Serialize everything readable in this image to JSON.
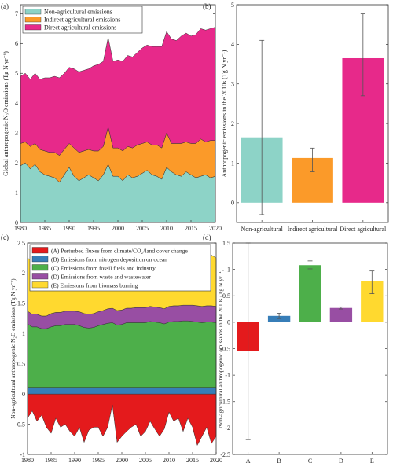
{
  "chart_data": [
    {
      "panel": "(a)",
      "type": "area",
      "stacked": true,
      "ylabel": "Global anthropogenic N₂O emissions (Tg N yr⁻¹)",
      "xlim": [
        1980,
        2020
      ],
      "ylim": [
        0,
        7.3
      ],
      "xticks": [
        1980,
        1985,
        1990,
        1995,
        2000,
        2005,
        2010,
        2015,
        2020
      ],
      "yticks": [
        0,
        1,
        2,
        3,
        4,
        5,
        6,
        7
      ],
      "legend_position": "top-left",
      "x": [
        1980,
        1981,
        1982,
        1983,
        1984,
        1985,
        1986,
        1987,
        1988,
        1989,
        1990,
        1991,
        1992,
        1993,
        1994,
        1995,
        1996,
        1997,
        1998,
        1999,
        2000,
        2001,
        2002,
        2003,
        2004,
        2005,
        2006,
        2007,
        2008,
        2009,
        2010,
        2011,
        2012,
        2013,
        2014,
        2015,
        2016,
        2017,
        2018,
        2019,
        2020
      ],
      "series": [
        {
          "name": "Non-agricultural emissions",
          "color": "#8dd3c7",
          "values": [
            1.9,
            2.0,
            1.8,
            1.95,
            1.7,
            1.6,
            1.55,
            1.5,
            1.35,
            1.6,
            1.85,
            1.55,
            1.4,
            1.5,
            1.6,
            1.5,
            1.4,
            1.6,
            1.95,
            1.55,
            1.55,
            1.4,
            1.6,
            1.5,
            1.55,
            1.65,
            1.75,
            1.6,
            1.55,
            1.45,
            1.85,
            1.7,
            1.6,
            1.55,
            1.7,
            1.6,
            1.5,
            1.55,
            1.6,
            1.5,
            1.55
          ]
        },
        {
          "name": "Indirect agricultural emissions",
          "color": "#fb9a29",
          "values": [
            0.75,
            0.7,
            0.75,
            0.7,
            0.75,
            0.8,
            0.8,
            0.85,
            0.9,
            0.85,
            0.8,
            0.95,
            0.95,
            0.9,
            0.85,
            0.9,
            1.0,
            0.95,
            1.25,
            0.95,
            0.95,
            1.0,
            0.95,
            1.0,
            1.05,
            1.0,
            0.95,
            1.0,
            1.05,
            1.05,
            1.15,
            0.95,
            1.05,
            1.1,
            1.0,
            1.05,
            1.15,
            1.25,
            1.1,
            1.25,
            1.2
          ]
        },
        {
          "name": "Direct agricultural emissions",
          "color": "#e7298a",
          "values": [
            2.25,
            2.3,
            2.25,
            2.35,
            2.35,
            2.45,
            2.5,
            2.55,
            2.6,
            2.55,
            2.55,
            2.65,
            2.7,
            2.7,
            2.7,
            2.85,
            2.9,
            2.85,
            3.0,
            2.9,
            2.95,
            3.0,
            3.05,
            3.05,
            3.1,
            3.2,
            3.25,
            3.3,
            3.3,
            3.4,
            3.4,
            3.5,
            3.45,
            3.6,
            3.65,
            3.6,
            3.65,
            3.7,
            3.75,
            3.75,
            3.8
          ]
        }
      ]
    },
    {
      "panel": "(b)",
      "type": "bar",
      "ylabel": "Anthropogenic emissions in the 2010s (Tg N yr⁻¹)",
      "ylim": [
        -0.5,
        5
      ],
      "yticks": [
        0,
        1,
        2,
        3,
        4,
        5
      ],
      "categories": [
        "Non-agricultural",
        "Indirect agricultural",
        "Direct agricultural"
      ],
      "colors": [
        "#8dd3c7",
        "#fb9a29",
        "#e7298a"
      ],
      "values": [
        1.65,
        1.13,
        3.65
      ],
      "error_low": [
        -0.3,
        0.78,
        2.7
      ],
      "error_high": [
        4.1,
        1.38,
        4.77
      ]
    },
    {
      "panel": "(c)",
      "type": "area",
      "stacked": true,
      "ylabel": "Non-agricultural anthropogenic N₂O emissions (Tg N yr⁻¹)",
      "xlim": [
        1980,
        2020
      ],
      "ylim": [
        -1,
        2.5
      ],
      "xticks": [
        1980,
        1985,
        1990,
        1995,
        2000,
        2005,
        2010,
        2015,
        2020
      ],
      "yticks": [
        -1,
        -0.5,
        0,
        0.5,
        1,
        1.5,
        2,
        2.5
      ],
      "legend_position": "top",
      "x": [
        1980,
        1981,
        1982,
        1983,
        1984,
        1985,
        1986,
        1987,
        1988,
        1989,
        1990,
        1991,
        1992,
        1993,
        1994,
        1995,
        1996,
        1997,
        1998,
        1999,
        2000,
        2001,
        2002,
        2003,
        2004,
        2005,
        2006,
        2007,
        2008,
        2009,
        2010,
        2011,
        2012,
        2013,
        2014,
        2015,
        2016,
        2017,
        2018,
        2019,
        2020
      ],
      "series": [
        {
          "name": "(A) Perturbed fluxes from climate/CO₂/land cover change",
          "color": "#e41a1c",
          "values": [
            -0.4,
            -0.28,
            -0.45,
            -0.35,
            -0.55,
            -0.65,
            -0.4,
            -0.55,
            -0.5,
            -0.62,
            -0.7,
            -0.55,
            -0.8,
            -0.6,
            -0.55,
            -0.55,
            -0.7,
            -0.55,
            -0.18,
            -0.8,
            -0.7,
            -0.62,
            -0.55,
            -0.5,
            -0.7,
            -0.62,
            -0.45,
            -0.58,
            -0.7,
            -0.58,
            -0.3,
            -0.45,
            -0.4,
            -0.62,
            -0.4,
            -0.55,
            -0.85,
            -0.7,
            -0.55,
            -0.82,
            -0.7
          ]
        },
        {
          "name": "(B) Emissions from nitrogen deposition on ocean",
          "color": "#377eb8",
          "values": [
            0.11,
            0.11,
            0.11,
            0.11,
            0.11,
            0.11,
            0.11,
            0.11,
            0.11,
            0.11,
            0.11,
            0.11,
            0.11,
            0.11,
            0.11,
            0.11,
            0.11,
            0.11,
            0.11,
            0.11,
            0.11,
            0.11,
            0.11,
            0.11,
            0.11,
            0.11,
            0.11,
            0.11,
            0.11,
            0.11,
            0.11,
            0.11,
            0.11,
            0.11,
            0.11,
            0.11,
            0.11,
            0.11,
            0.11,
            0.11,
            0.11
          ]
        },
        {
          "name": "(C) Emissions from fossil fuels and industry",
          "color": "#4daf4a",
          "values": [
            1.05,
            1.0,
            1.0,
            0.97,
            0.97,
            1.0,
            1.02,
            1.02,
            1.04,
            1.04,
            1.04,
            1.02,
            0.99,
            0.98,
            0.99,
            1.02,
            1.04,
            1.06,
            1.07,
            1.03,
            1.04,
            1.07,
            1.07,
            1.07,
            1.07,
            1.07,
            1.09,
            1.08,
            1.07,
            1.05,
            1.08,
            1.09,
            1.09,
            1.1,
            1.1,
            1.09,
            1.08,
            1.07,
            1.08,
            1.08,
            1.07
          ]
        },
        {
          "name": "(D) Emissions from waste and wastewater",
          "color": "#984ea3",
          "values": [
            0.21,
            0.21,
            0.21,
            0.21,
            0.21,
            0.22,
            0.22,
            0.22,
            0.22,
            0.22,
            0.22,
            0.23,
            0.23,
            0.23,
            0.23,
            0.23,
            0.23,
            0.24,
            0.24,
            0.24,
            0.24,
            0.24,
            0.24,
            0.25,
            0.25,
            0.25,
            0.25,
            0.25,
            0.25,
            0.25,
            0.26,
            0.26,
            0.26,
            0.26,
            0.26,
            0.27,
            0.27,
            0.27,
            0.27,
            0.27,
            0.27
          ]
        },
        {
          "name": "(E) Emissions from biomass burning",
          "color": "#ffd92f",
          "values": [
            0.88,
            0.88,
            0.75,
            0.88,
            0.87,
            0.82,
            0.82,
            0.87,
            0.83,
            0.8,
            0.7,
            0.87,
            0.82,
            0.84,
            0.84,
            0.79,
            0.87,
            0.79,
            0.73,
            0.78,
            0.86,
            0.8,
            0.82,
            0.84,
            0.82,
            0.88,
            0.84,
            0.91,
            0.88,
            0.69,
            0.9,
            0.85,
            0.85,
            0.75,
            0.79,
            0.83,
            0.73,
            0.85,
            0.79,
            0.84,
            0.8
          ]
        }
      ]
    },
    {
      "panel": "(d)",
      "type": "bar",
      "ylabel": "Non-agricultural anthropogenic emissions in the 2010s (Tg N yr⁻¹)",
      "ylim": [
        -2.5,
        1.5
      ],
      "yticks": [
        -2.5,
        -2,
        -1.5,
        -1,
        -0.5,
        0,
        0.5,
        1,
        1.5
      ],
      "categories": [
        "A",
        "B",
        "C",
        "D",
        "E"
      ],
      "colors": [
        "#e41a1c",
        "#377eb8",
        "#4daf4a",
        "#984ea3",
        "#ffd92f"
      ],
      "values": [
        -0.55,
        0.12,
        1.08,
        0.27,
        0.78
      ],
      "error_low": [
        -2.22,
        0.07,
        1.01,
        0.25,
        0.54
      ],
      "error_high": [
        1.5,
        0.17,
        1.16,
        0.29,
        0.97
      ]
    }
  ]
}
